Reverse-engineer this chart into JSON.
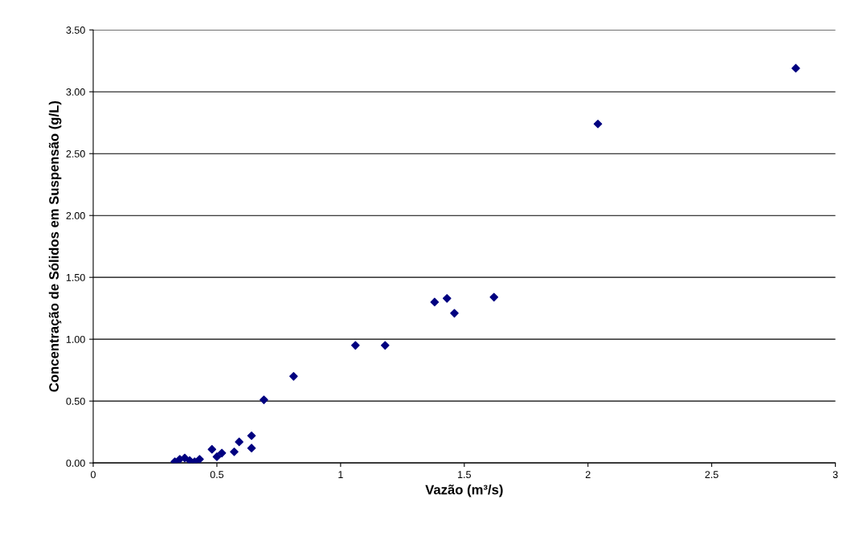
{
  "chart_data": {
    "type": "scatter",
    "xlabel": "Vazão (m³/s)",
    "ylabel": "Concentração de Sólidos em Suspensão (g/L)",
    "series": [
      {
        "color": "#000080",
        "x": [
          0.33,
          0.35,
          0.37,
          0.39,
          0.41,
          0.43,
          0.48,
          0.5,
          0.52,
          0.57,
          0.59,
          0.64,
          0.64,
          0.69,
          0.81,
          1.06,
          1.18,
          1.38,
          1.43,
          1.46,
          1.62,
          2.04,
          2.84
        ],
        "values": [
          0.01,
          0.03,
          0.04,
          0.02,
          0.01,
          0.03,
          0.11,
          0.05,
          0.08,
          0.09,
          0.17,
          0.22,
          0.12,
          0.51,
          0.7,
          0.95,
          0.95,
          1.3,
          1.33,
          1.21,
          1.34,
          2.74,
          3.19
        ]
      }
    ],
    "xlim": [
      0,
      3
    ],
    "xticks": [
      0,
      0.5,
      1,
      1.5,
      2,
      2.5,
      3
    ],
    "ylim": [
      0,
      3.5
    ],
    "yticks": [
      {
        "value": 0,
        "label": "0.00"
      },
      {
        "value": 0.5,
        "label": "0.50"
      },
      {
        "value": 1,
        "label": "1.00"
      },
      {
        "value": 1.5,
        "label": "1.50"
      },
      {
        "value": 2,
        "label": "2.00"
      },
      {
        "value": 2.5,
        "label": "2.50"
      },
      {
        "value": 3,
        "label": "3.00"
      },
      {
        "value": 3.5,
        "label": "3.50"
      }
    ],
    "grid": "y",
    "marker": "diamond",
    "legend": false
  }
}
